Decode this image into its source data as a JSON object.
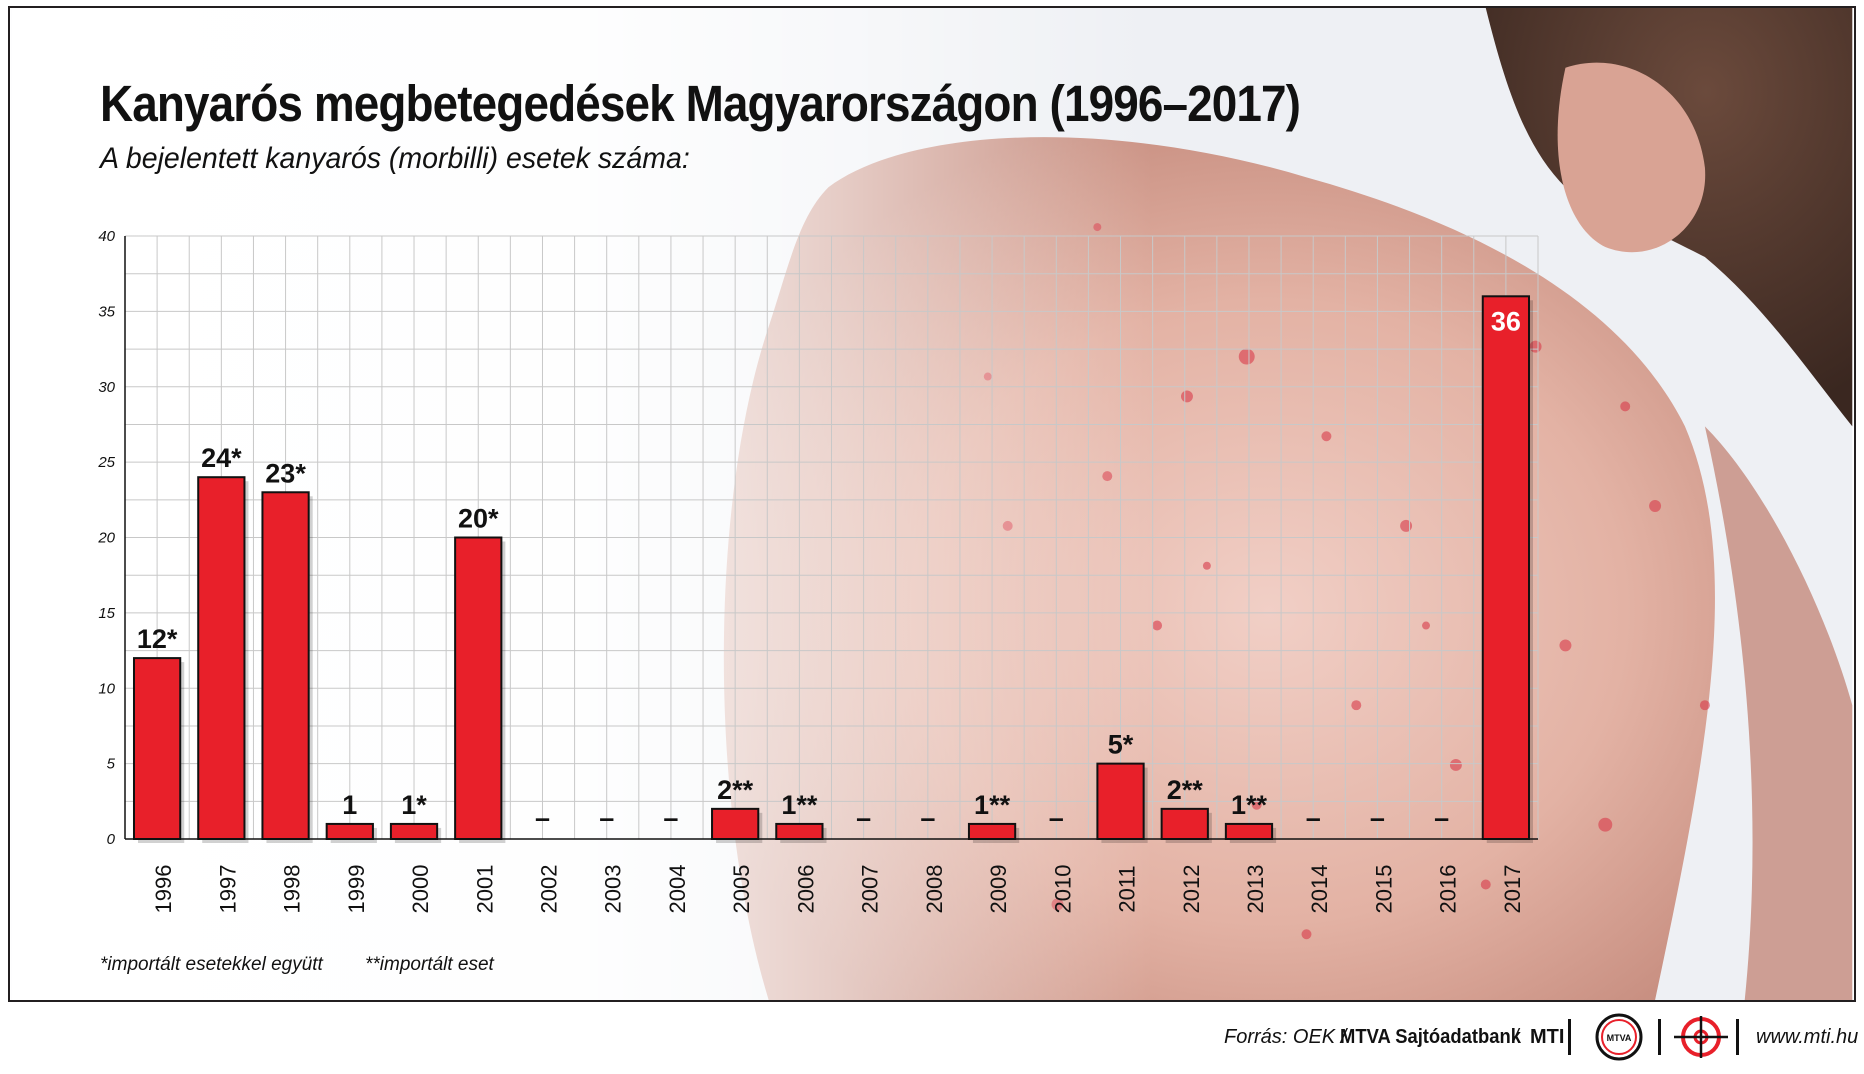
{
  "header": {
    "title": "Kanyarós megbetegedések Magyarországon (1996–2017)",
    "subtitle": "A bejelentett kanyarós (morbilli) esetek száma:"
  },
  "chart_data": {
    "type": "bar",
    "title": "Kanyarós megbetegedések Magyarországon (1996–2017)",
    "subtitle": "A bejelentett kanyarós (morbilli) esetek száma:",
    "categories": [
      "1996",
      "1997",
      "1998",
      "1999",
      "2000",
      "2001",
      "2002",
      "2003",
      "2004",
      "2005",
      "2006",
      "2007",
      "2008",
      "2009",
      "2010",
      "2011",
      "2012",
      "2013",
      "2014",
      "2015",
      "2016",
      "2017"
    ],
    "values": [
      12,
      24,
      23,
      1,
      1,
      20,
      0,
      0,
      0,
      2,
      1,
      0,
      0,
      1,
      0,
      5,
      2,
      1,
      0,
      0,
      0,
      36
    ],
    "labels": [
      "12*",
      "24*",
      "23*",
      "1",
      "1*",
      "20*",
      "–",
      "–",
      "–",
      "2**",
      "1**",
      "–",
      "–",
      "1**",
      "–",
      "5*",
      "2**",
      "1**",
      "–",
      "–",
      "–",
      "36"
    ],
    "ylim": [
      0,
      40
    ],
    "yticks": [
      "0",
      "5",
      "10",
      "15",
      "20",
      "25",
      "30",
      "35",
      "40"
    ],
    "xlabel": "",
    "ylabel": "",
    "grid": true,
    "bar_color": "#e8202a",
    "legend": "none"
  },
  "notes": {
    "imported_with": "*importált esetekkel együtt",
    "imported_only": "**importált eset"
  },
  "footer": {
    "source_prefix": "Forrás: OEK /",
    "source_bank": "MTVA Sajtóadatbank",
    "source_sep": "/",
    "source_mti": "MTI",
    "mtva_logo_text": "MTVA",
    "website": "www.mti.hu"
  },
  "colors": {
    "accent": "#e8202a",
    "text": "#111111",
    "grid": "#c8c8c8"
  }
}
